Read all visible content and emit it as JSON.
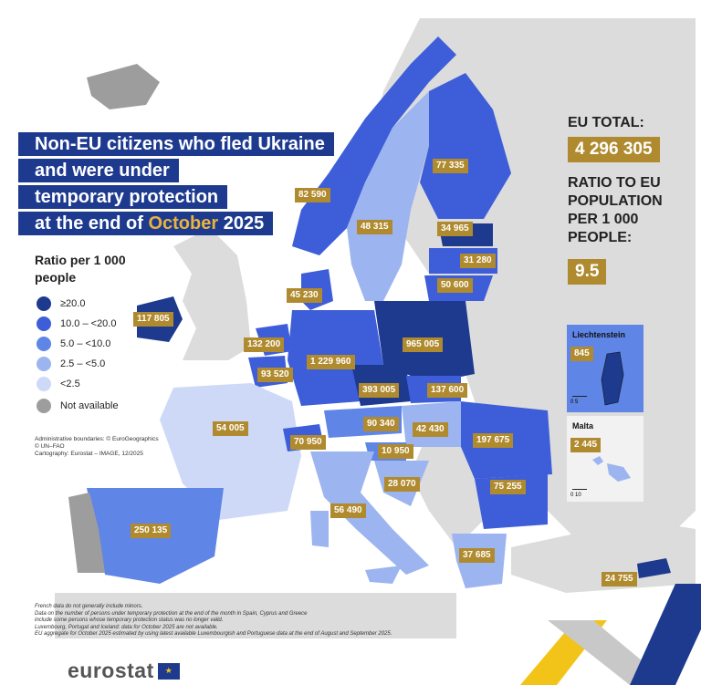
{
  "title": {
    "line1": "Non-EU citizens who fled Ukraine",
    "line2": "and were under",
    "line3": "temporary protection",
    "line4_prefix": "at the end of",
    "line4_month": "October",
    "line4_year": "2025"
  },
  "legend": {
    "title": "Ratio per 1 000 people",
    "items": [
      {
        "label": "≥20.0",
        "color": "#1d3a8f"
      },
      {
        "label": "10.0 – <20.0",
        "color": "#3d5ed8"
      },
      {
        "label": "5.0 – <10.0",
        "color": "#5f85e6"
      },
      {
        "label": "2.5 – <5.0",
        "color": "#9cb4ef"
      },
      {
        "label": "<2.5",
        "color": "#cdd9f7"
      },
      {
        "label": "Not available",
        "color": "#9d9d9d"
      }
    ]
  },
  "credits": {
    "line1": "Administrative boundaries: © EuroGeographics",
    "line2": "© UN–FAO",
    "line3": "Cartography: Eurostat – IMAGE, 12/2025"
  },
  "eu_total": {
    "heading": "EU TOTAL:",
    "value": "4 296 305",
    "ratio_heading_1": "RATIO TO EU",
    "ratio_heading_2": "POPULATION",
    "ratio_heading_3": "PER 1 000",
    "ratio_heading_4": "PEOPLE:",
    "ratio_value": "9.5"
  },
  "countries": {
    "finland": "77 335",
    "norway": "82 590",
    "sweden": "48 315",
    "estonia": "34 965",
    "latvia": "31 280",
    "lithuania": "50 600",
    "denmark": "45 230",
    "ireland": "117 805",
    "netherlands": "132 200",
    "belgium": "93 520",
    "germany": "1 229 960",
    "poland": "965 005",
    "czechia": "393 005",
    "slovakia": "137 600",
    "austria": "90 340",
    "hungary": "42 430",
    "romania": "197 675",
    "france": "54 005",
    "switzerland": "70 950",
    "slovenia": "10 950",
    "croatia": "28 070",
    "bulgaria": "75 255",
    "italy": "56 490",
    "spain": "250 135",
    "greece": "37 685",
    "cyprus": "24 755"
  },
  "insets": {
    "liechtenstein": {
      "name": "Liechtenstein",
      "value": "845",
      "scale": "0   5"
    },
    "malta": {
      "name": "Malta",
      "value": "2 445",
      "scale": "0   10"
    }
  },
  "footnotes": {
    "line1": "French data do not generally include minors.",
    "line2": "Data on the number of persons under temporary protection at the end of the month in Spain, Cyprus and Greece",
    "line3": "include some persons whose temporary protection status was no longer valid.",
    "line4": "Luxembourg, Portugal and Iceland: data for October 2025 are not available.",
    "line5": "EU aggregate for October 2025 estimated by using latest available Luxembourgish and Portuguese data at the end of August and September 2025."
  },
  "logo": {
    "text": "eurostat"
  },
  "colors": {
    "dark": "#1d3a8f",
    "mid_dark": "#3d5ed8",
    "mid": "#5f85e6",
    "light": "#9cb4ef",
    "lightest": "#cdd9f7",
    "na": "#9d9d9d",
    "non_eu": "#dcdcdc",
    "label_bg": "#b08a2e"
  }
}
